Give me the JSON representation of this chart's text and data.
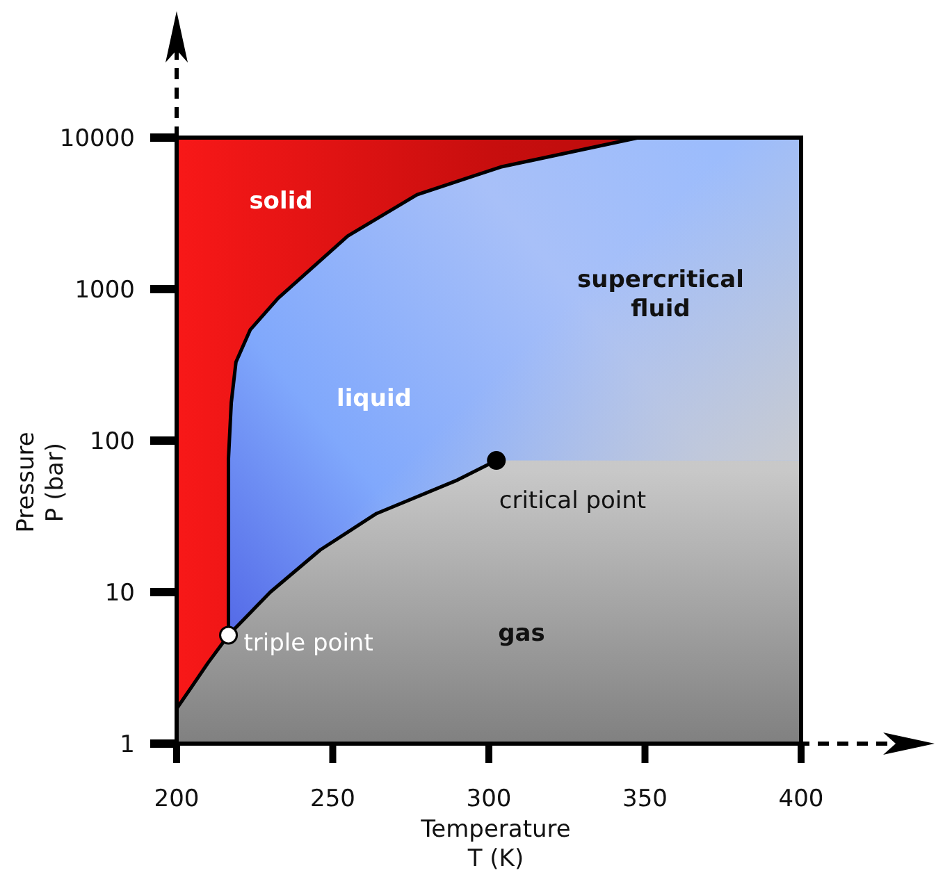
{
  "chart_data": {
    "type": "line",
    "xlabel": "Temperature\nT (K)",
    "ylabel": "Pressure\nP (bar)",
    "xlim": [
      200,
      400
    ],
    "xticks": [
      200,
      250,
      300,
      350,
      400
    ],
    "ylim": [
      1,
      10000
    ],
    "yticks": [
      1,
      10,
      100,
      1000,
      10000
    ],
    "log": true,
    "grid": false,
    "line_style": "solid",
    "series": [
      {
        "color": "#000000",
        "x": [
          200,
          205,
          210,
          216.6
        ],
        "values": [
          1.7,
          2.4,
          3.4,
          5.2
        ]
      },
      {
        "color": "#000000",
        "x": [
          216.6,
          230,
          246,
          264,
          290,
          302.4
        ],
        "values": [
          5.2,
          10,
          19,
          33,
          55,
          74
        ]
      },
      {
        "color": "#000000",
        "x": [
          216.6,
          216.6,
          217.5,
          219,
          223.6,
          232.5,
          254.8,
          277,
          303.8,
          348
        ],
        "values": [
          5.2,
          76,
          178,
          330,
          540,
          870,
          2240,
          4200,
          6400,
          10000
        ]
      },
      {
        "type": "scatter",
        "marker": "circle",
        "color": "#ffffff",
        "x": [
          216.6
        ],
        "values": [
          5.2
        ]
      },
      {
        "type": "scatter",
        "marker": "circle",
        "color": "#000000",
        "x": [
          302.4
        ],
        "values": [
          74
        ]
      }
    ],
    "annotations": [
      {
        "text": "triple point",
        "x": 216.6,
        "y": 5.2
      },
      {
        "text": "critical point",
        "x": 302.4,
        "y": 74
      },
      "solid",
      "liquid",
      "supercritical fluid",
      "gas"
    ]
  }
}
